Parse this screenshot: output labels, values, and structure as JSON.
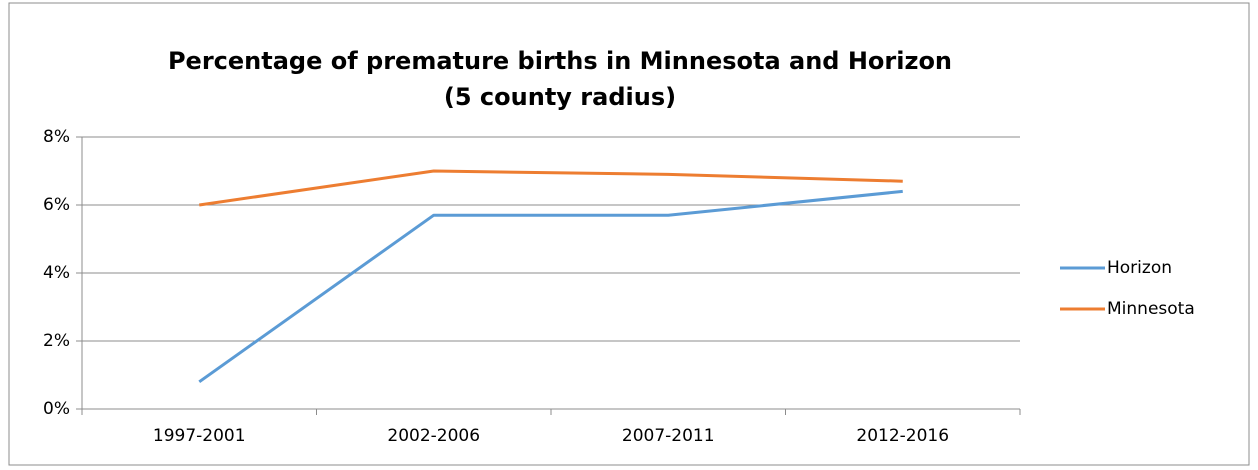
{
  "chart_data": {
    "type": "line",
    "title": [
      "Percentage of premature births in Minnesota and Horizon",
      "(5 county radius)"
    ],
    "categories": [
      "1997-2001",
      "2002-2006",
      "2007-2011",
      "2012-2016"
    ],
    "series": [
      {
        "name": "Horizon",
        "color": "#5b9bd5",
        "values": [
          0.8,
          5.7,
          5.7,
          6.4
        ]
      },
      {
        "name": "Minnesota",
        "color": "#ed7d31",
        "values": [
          6.0,
          7.0,
          6.9,
          6.7
        ]
      }
    ],
    "ylim": [
      0,
      8
    ],
    "yticks": [
      {
        "value": 0,
        "label": "0%"
      },
      {
        "value": 2,
        "label": "2%"
      },
      {
        "value": 4,
        "label": "4%"
      },
      {
        "value": 6,
        "label": "6%"
      },
      {
        "value": 8,
        "label": "8%"
      }
    ],
    "grid": true,
    "legend": "right"
  }
}
